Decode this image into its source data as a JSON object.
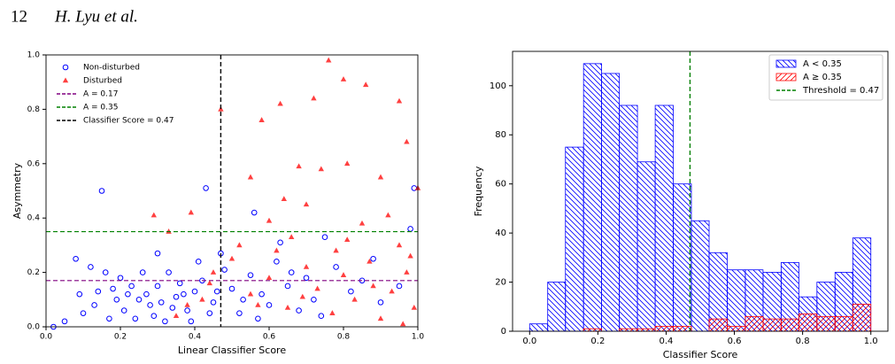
{
  "header": {
    "page_number": "12",
    "authors": "H. Lyu et al."
  },
  "chart_data": [
    {
      "type": "scatter",
      "xlabel": "Linear Classifier Score",
      "ylabel": "Asymmetry",
      "xlim": [
        0,
        1
      ],
      "ylim": [
        0,
        1
      ],
      "xticks": [
        {
          "value": 0,
          "label": "0.0"
        },
        0.2,
        0.4,
        0.6,
        0.8,
        {
          "value": 1,
          "label": "1.0"
        }
      ],
      "yticks": [
        {
          "value": 0,
          "label": "0.0"
        },
        0.2,
        0.4,
        0.6,
        0.8,
        {
          "value": 1,
          "label": "1.0"
        }
      ],
      "legend": "upper left",
      "series": [
        {
          "name": "Non-disturbed",
          "color": "#0000ff",
          "marker": "circle",
          "x": [
            0.15,
            0.43,
            0.99,
            0.56,
            0.98,
            0.63,
            0.75,
            0.08,
            0.12,
            0.16,
            0.2,
            0.22,
            0.25,
            0.28,
            0.3,
            0.33,
            0.35,
            0.38,
            0.4,
            0.42,
            0.45,
            0.48,
            0.5,
            0.52,
            0.55,
            0.58,
            0.6,
            0.62,
            0.65,
            0.68,
            0.7,
            0.72,
            0.78,
            0.82,
            0.85,
            0.9,
            0.95,
            0.05,
            0.1,
            0.13,
            0.17,
            0.19,
            0.21,
            0.23,
            0.26,
            0.29,
            0.31,
            0.34,
            0.36,
            0.39,
            0.41,
            0.44,
            0.46,
            0.02,
            0.14,
            0.18,
            0.24,
            0.27,
            0.32,
            0.37,
            0.47,
            0.53,
            0.57,
            0.66,
            0.74,
            0.88,
            0.3,
            0.09
          ],
          "values": [
            0.5,
            0.51,
            0.51,
            0.42,
            0.36,
            0.31,
            0.33,
            0.25,
            0.22,
            0.2,
            0.18,
            0.12,
            0.1,
            0.08,
            0.15,
            0.2,
            0.11,
            0.06,
            0.13,
            0.17,
            0.09,
            0.21,
            0.14,
            0.05,
            0.19,
            0.12,
            0.08,
            0.24,
            0.15,
            0.06,
            0.18,
            0.1,
            0.22,
            0.13,
            0.17,
            0.09,
            0.15,
            0.02,
            0.05,
            0.08,
            0.03,
            0.1,
            0.06,
            0.15,
            0.2,
            0.04,
            0.09,
            0.07,
            0.16,
            0.02,
            0.24,
            0.05,
            0.13,
            0.0,
            0.13,
            0.14,
            0.03,
            0.12,
            0.02,
            0.12,
            0.27,
            0.1,
            0.03,
            0.2,
            0.04,
            0.25,
            0.27,
            0.12
          ]
        },
        {
          "name": "Disturbed",
          "color": "#ff0000",
          "marker": "triangle",
          "x": [
            0.76,
            0.8,
            0.72,
            0.86,
            0.63,
            0.47,
            0.95,
            0.58,
            0.97,
            0.81,
            0.9,
            0.68,
            0.55,
            0.74,
            1.0,
            0.29,
            0.39,
            0.64,
            0.7,
            0.92,
            0.6,
            0.85,
            0.33,
            0.52,
            0.66,
            0.78,
            0.95,
            0.45,
            0.5,
            0.55,
            0.6,
            0.65,
            0.7,
            0.73,
            0.77,
            0.8,
            0.83,
            0.87,
            0.9,
            0.93,
            0.97,
            0.99,
            0.42,
            0.44,
            0.38,
            0.35,
            0.62,
            0.88,
            0.96,
            0.57,
            0.81,
            0.98,
            0.69
          ],
          "values": [
            0.98,
            0.91,
            0.84,
            0.89,
            0.82,
            0.8,
            0.83,
            0.76,
            0.68,
            0.6,
            0.55,
            0.59,
            0.55,
            0.58,
            0.51,
            0.41,
            0.42,
            0.47,
            0.45,
            0.41,
            0.39,
            0.38,
            0.35,
            0.3,
            0.33,
            0.28,
            0.3,
            0.2,
            0.25,
            0.12,
            0.18,
            0.07,
            0.22,
            0.14,
            0.05,
            0.19,
            0.1,
            0.24,
            0.03,
            0.13,
            0.2,
            0.07,
            0.1,
            0.16,
            0.08,
            0.04,
            0.28,
            0.15,
            0.01,
            0.08,
            0.32,
            0.26,
            0.11
          ]
        }
      ],
      "hlines": [
        {
          "name": "A = 0.17",
          "value": 0.17,
          "color": "#800080"
        },
        {
          "name": "A = 0.35",
          "value": 0.35,
          "color": "#008000"
        }
      ],
      "vlines": [
        {
          "name": "Classifier Score = 0.47",
          "value": 0.47,
          "color": "#000000"
        }
      ]
    },
    {
      "type": "histogram",
      "xlabel": "Classifier Score",
      "ylabel": "Frequency",
      "xlim": [
        -0.05,
        1.05
      ],
      "ylim": [
        0,
        114
      ],
      "xticks": [
        {
          "value": 0,
          "label": "0.0"
        },
        0.2,
        0.4,
        0.6,
        0.8,
        {
          "value": 1,
          "label": "1.0"
        }
      ],
      "yticks": [
        0,
        20,
        40,
        60,
        80,
        100
      ],
      "legend": "upper right",
      "bins": [
        0,
        0.053,
        0.105,
        0.158,
        0.211,
        0.263,
        0.316,
        0.368,
        0.421,
        0.474,
        0.526,
        0.579,
        0.632,
        0.684,
        0.737,
        0.789,
        0.842,
        0.895,
        0.947,
        1.0
      ],
      "series": [
        {
          "name": "A < 0.35",
          "color": "#0000ff",
          "hatch": "\\\\",
          "values": [
            3,
            20,
            75,
            109,
            105,
            92,
            69,
            92,
            60,
            45,
            32,
            25,
            25,
            24,
            28,
            14,
            20,
            24,
            38
          ]
        },
        {
          "name": "A ≥ 0.35",
          "color": "#ff0000",
          "hatch": "//",
          "values": [
            0,
            0,
            0,
            1,
            0,
            1,
            1,
            2,
            2,
            0,
            5,
            2,
            6,
            5,
            5,
            7,
            6,
            6,
            11
          ]
        }
      ],
      "vlines": [
        {
          "name": "Threshold = 0.47",
          "value": 0.47,
          "color": "#008000"
        }
      ]
    }
  ]
}
